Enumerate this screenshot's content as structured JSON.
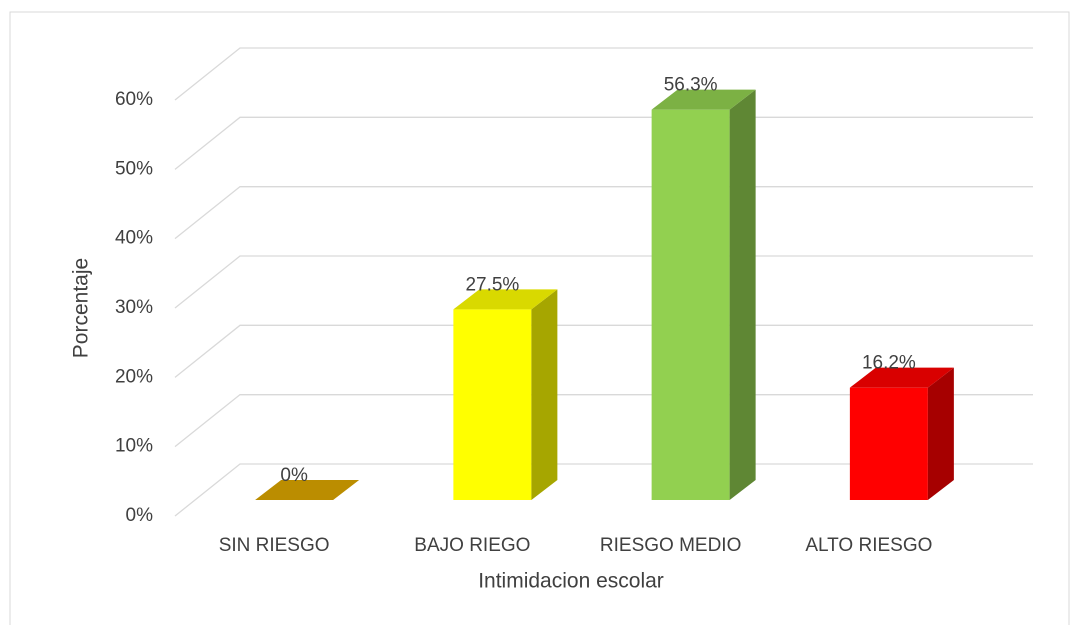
{
  "chart_data": {
    "type": "bar3d",
    "x_label": "Intimidacion escolar",
    "y_label": "Porcentaje",
    "categories": [
      "SIN RIESGO",
      "BAJO RIEGO",
      "RIESGO MEDIO",
      "ALTO RIESGO"
    ],
    "values": [
      0,
      27.5,
      56.3,
      16.2
    ],
    "value_labels": [
      "0%",
      "27.5%",
      "56.3%",
      "16.2%"
    ],
    "colors": [
      "#dca600",
      "#ffff00",
      "#92d050",
      "#ff0000"
    ],
    "ylim": [
      0,
      60
    ],
    "yticks": [
      {
        "value": 0,
        "label": "0%"
      },
      {
        "value": 10,
        "label": "10%"
      },
      {
        "value": 20,
        "label": "20%"
      },
      {
        "value": 30,
        "label": "30%"
      },
      {
        "value": 40,
        "label": "40%"
      },
      {
        "value": 50,
        "label": "50%"
      },
      {
        "value": 60,
        "label": "60%"
      }
    ],
    "grid": true
  }
}
